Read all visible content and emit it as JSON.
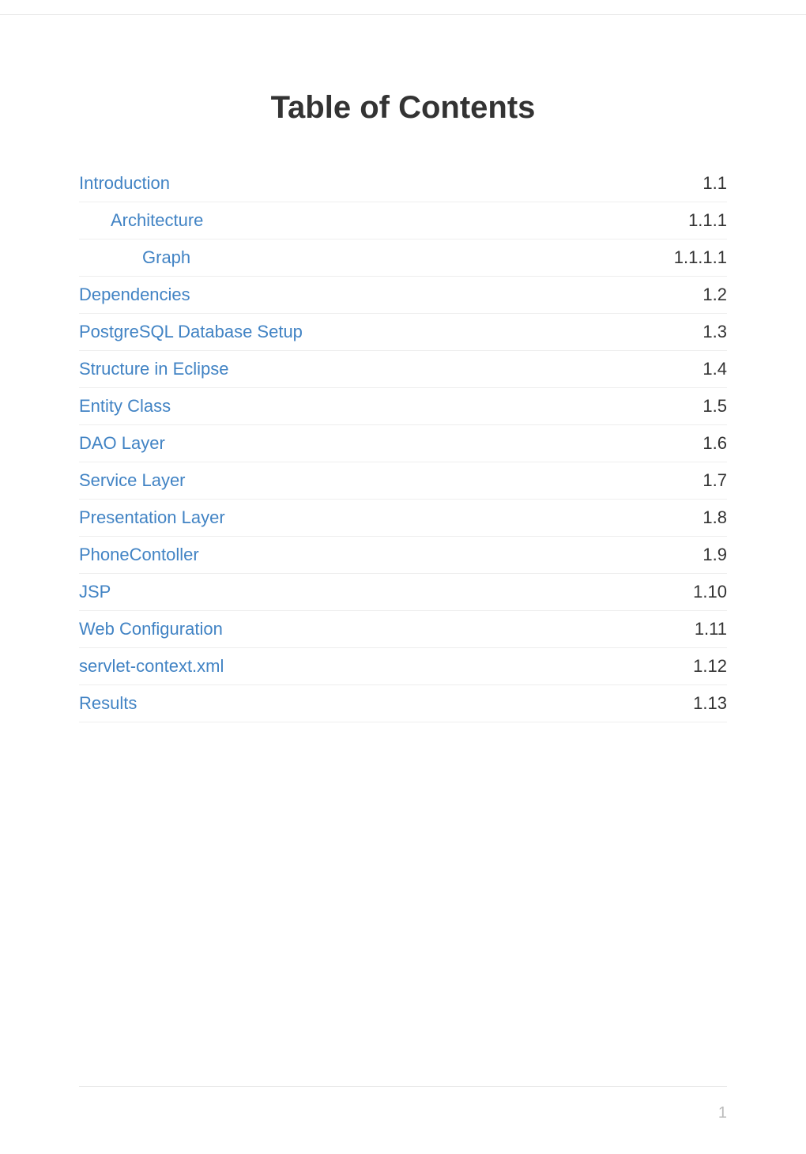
{
  "title": "Table of Contents",
  "entries": [
    {
      "label": "Introduction",
      "number": "1.1",
      "level": 0
    },
    {
      "label": "Architecture",
      "number": "1.1.1",
      "level": 1
    },
    {
      "label": "Graph",
      "number": "1.1.1.1",
      "level": 2
    },
    {
      "label": "Dependencies",
      "number": "1.2",
      "level": 0
    },
    {
      "label": "PostgreSQL Database Setup",
      "number": "1.3",
      "level": 0
    },
    {
      "label": "Structure in Eclipse",
      "number": "1.4",
      "level": 0
    },
    {
      "label": "Entity Class",
      "number": "1.5",
      "level": 0
    },
    {
      "label": "DAO Layer",
      "number": "1.6",
      "level": 0
    },
    {
      "label": "Service Layer",
      "number": "1.7",
      "level": 0
    },
    {
      "label": "Presentation Layer",
      "number": "1.8",
      "level": 0
    },
    {
      "label": "PhoneContoller",
      "number": "1.9",
      "level": 0
    },
    {
      "label": "JSP",
      "number": "1.10",
      "level": 0
    },
    {
      "label": "Web Configuration",
      "number": "1.11",
      "level": 0
    },
    {
      "label": "servlet-context.xml",
      "number": "1.12",
      "level": 0
    },
    {
      "label": "Results",
      "number": "1.13",
      "level": 0
    }
  ],
  "pageNumber": "1",
  "colors": {
    "link": "#4183c4",
    "text": "#333333",
    "border": "#eeeeee",
    "pageNum": "#bbbbbb"
  }
}
